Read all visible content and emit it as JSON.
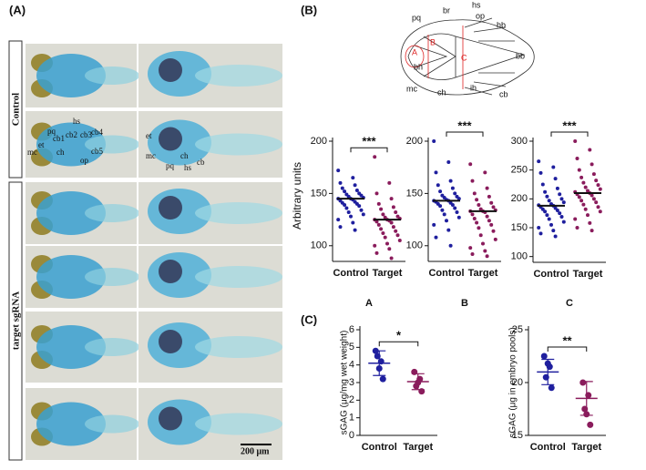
{
  "panels": {
    "a": {
      "label": "(A)",
      "row_labels": [
        "Control",
        "target sgRNA"
      ],
      "dorsal_labels": [
        "hs",
        "pq",
        "cb1",
        "cb2",
        "cb3",
        "cb4",
        "et",
        "mc",
        "ch",
        "cb5",
        "op"
      ],
      "lateral_labels": [
        "et",
        "mc",
        "ch",
        "pq",
        "hs",
        "cb"
      ],
      "scale_bar": "200 μm"
    },
    "b": {
      "label": "(B)",
      "diagram_labels": [
        "hs",
        "br",
        "op",
        "pq",
        "hb",
        "A",
        "B",
        "C",
        "bb",
        "bh",
        "mc",
        "ch",
        "ih",
        "cb"
      ]
    },
    "c": {
      "label": "(C)"
    }
  },
  "chart_data": [
    {
      "type": "swarm",
      "ylabel": "Arbitrary units",
      "xlabel": "A",
      "significance": "***",
      "categories": [
        "Control",
        "Target"
      ],
      "ylim": [
        85,
        200
      ],
      "yticks": [
        100,
        150,
        200
      ],
      "groups": [
        {
          "color": "#1f1f9e",
          "mean": 145,
          "values": [
            172,
            165,
            160,
            158,
            155,
            153,
            152,
            150,
            149,
            148,
            147,
            146,
            145,
            145,
            144,
            143,
            142,
            141,
            140,
            139,
            138,
            136,
            134,
            132,
            130,
            128,
            125,
            122,
            118,
            115
          ]
        },
        {
          "color": "#8a1c5c",
          "mean": 125,
          "values": [
            185,
            160,
            150,
            145,
            140,
            137,
            135,
            132,
            130,
            128,
            127,
            126,
            125,
            125,
            124,
            123,
            122,
            120,
            118,
            116,
            114,
            112,
            110,
            108,
            105,
            102,
            100,
            97,
            93,
            88
          ]
        }
      ]
    },
    {
      "type": "swarm",
      "xlabel": "B",
      "significance": "***",
      "categories": [
        "Control",
        "Target"
      ],
      "ylim": [
        85,
        200
      ],
      "yticks": [
        100,
        150,
        200
      ],
      "groups": [
        {
          "color": "#1f1f9e",
          "mean": 143,
          "values": [
            200,
            180,
            170,
            162,
            158,
            155,
            152,
            150,
            148,
            147,
            146,
            145,
            144,
            143,
            143,
            142,
            141,
            140,
            139,
            138,
            136,
            134,
            132,
            130,
            127,
            124,
            120,
            115,
            108,
            100
          ]
        },
        {
          "color": "#8a1c5c",
          "mean": 133,
          "values": [
            178,
            170,
            162,
            155,
            150,
            147,
            144,
            141,
            139,
            137,
            135,
            134,
            133,
            133,
            132,
            130,
            128,
            126,
            124,
            122,
            120,
            117,
            114,
            110,
            106,
            102,
            98,
            95,
            92,
            90
          ]
        }
      ]
    },
    {
      "type": "swarm",
      "xlabel": "C",
      "significance": "***",
      "categories": [
        "Control",
        "Target"
      ],
      "ylim": [
        90,
        300
      ],
      "yticks": [
        100,
        150,
        200,
        250,
        300
      ],
      "groups": [
        {
          "color": "#1f1f9e",
          "mean": 188,
          "values": [
            265,
            255,
            245,
            235,
            225,
            218,
            212,
            208,
            204,
            200,
            197,
            194,
            191,
            189,
            188,
            186,
            184,
            182,
            180,
            178,
            175,
            172,
            169,
            165,
            160,
            155,
            150,
            145,
            140,
            135
          ]
        },
        {
          "color": "#8a1c5c",
          "mean": 210,
          "values": [
            300,
            285,
            270,
            260,
            250,
            243,
            237,
            232,
            228,
            224,
            220,
            217,
            214,
            212,
            210,
            208,
            206,
            203,
            200,
            197,
            194,
            190,
            186,
            182,
            178,
            172,
            165,
            158,
            150,
            145
          ]
        }
      ]
    },
    {
      "type": "dot",
      "ylabel": "sGAG (μg/mg wet weight)",
      "significance": "*",
      "categories": [
        "Control",
        "Target"
      ],
      "ylim": [
        0,
        6
      ],
      "yticks": [
        0,
        1,
        2,
        3,
        4,
        5,
        6
      ],
      "groups": [
        {
          "color": "#1f1f9e",
          "mean": 4.1,
          "sd": 0.7,
          "values": [
            4.8,
            4.2,
            4.5,
            3.2,
            3.8
          ]
        },
        {
          "color": "#8a1c5c",
          "mean": 3.05,
          "sd": 0.45,
          "values": [
            3.6,
            3.2,
            2.8,
            2.5,
            3.0
          ]
        }
      ]
    },
    {
      "type": "dot",
      "ylabel": "sGAG (μg in embryo pools)",
      "significance": "**",
      "categories": [
        "Control",
        "Target"
      ],
      "ylim": [
        15,
        25
      ],
      "yticks": [
        15,
        20,
        25
      ],
      "groups": [
        {
          "color": "#1f1f9e",
          "mean": 21,
          "sd": 1.2,
          "values": [
            22.5,
            21.5,
            20.5,
            19.5,
            21.8
          ]
        },
        {
          "color": "#8a1c5c",
          "mean": 18.5,
          "sd": 1.6,
          "values": [
            20.0,
            18.8,
            17.5,
            16.0,
            17.0
          ]
        }
      ]
    }
  ]
}
